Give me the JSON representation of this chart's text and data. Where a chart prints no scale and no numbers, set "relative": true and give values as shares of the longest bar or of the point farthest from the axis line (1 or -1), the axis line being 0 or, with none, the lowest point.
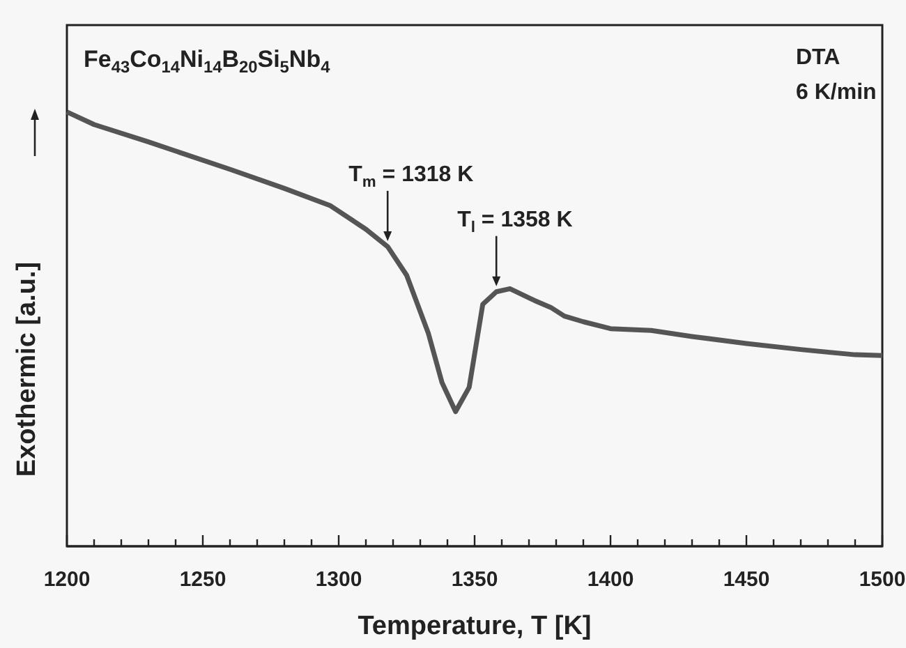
{
  "chart_data": {
    "type": "line",
    "title": "Fe$_{43}$Co$_{14}$Ni$_{14}$B$_{20}$Si$_{5}$Nb$_{4}$",
    "xlabel": "Temperature, T [K]",
    "ylabel": "Exothermic [a.u.]",
    "relative": true,
    "line_style": "solid",
    "marker": "none",
    "grid": false,
    "x": [
      1200,
      1210,
      1230,
      1260,
      1280,
      1297,
      1310,
      1318,
      1325,
      1333,
      1338,
      1343,
      1348,
      1353,
      1358,
      1363,
      1372,
      1378,
      1383,
      1390,
      1400,
      1415,
      1430,
      1450,
      1470,
      1490,
      1500
    ],
    "series": [
      {
        "color": "#555555",
        "values": [
          1.0,
          0.971,
          0.931,
          0.868,
          0.824,
          0.784,
          0.73,
          0.69,
          0.624,
          0.49,
          0.377,
          0.31,
          0.366,
          0.557,
          0.586,
          0.593,
          0.566,
          0.55,
          0.53,
          0.517,
          0.501,
          0.497,
          0.483,
          0.467,
          0.453,
          0.441,
          0.439
        ]
      }
    ],
    "xlim": [
      1200,
      1500
    ],
    "xticks": [
      1200,
      {
        "value": 1210,
        "label": null
      },
      {
        "value": 1220,
        "label": null
      },
      {
        "value": 1230,
        "label": null
      },
      {
        "value": 1240,
        "label": null
      },
      1250,
      {
        "value": 1260,
        "label": null
      },
      {
        "value": 1270,
        "label": null
      },
      {
        "value": 1280,
        "label": null
      },
      {
        "value": 1290,
        "label": null
      },
      1300,
      {
        "value": 1310,
        "label": null
      },
      {
        "value": 1320,
        "label": null
      },
      {
        "value": 1330,
        "label": null
      },
      {
        "value": 1340,
        "label": null
      },
      1350,
      {
        "value": 1360,
        "label": null
      },
      {
        "value": 1370,
        "label": null
      },
      {
        "value": 1380,
        "label": null
      },
      {
        "value": 1390,
        "label": null
      },
      1400,
      {
        "value": 1410,
        "label": null
      },
      {
        "value": 1420,
        "label": null
      },
      {
        "value": 1430,
        "label": null
      },
      {
        "value": 1440,
        "label": null
      },
      1450,
      {
        "value": 1460,
        "label": null
      },
      {
        "value": 1470,
        "label": null
      },
      {
        "value": 1480,
        "label": null
      },
      {
        "value": 1490,
        "label": null
      },
      1500
    ],
    "annotations": [
      "DTA",
      "6 K/min",
      {
        "text": "T$_{m}$ = 1318 K",
        "x": 1318,
        "y": 0.69
      },
      {
        "text": "T$_{l}$ = 1358 K",
        "x": 1358,
        "y": 0.586
      }
    ]
  }
}
